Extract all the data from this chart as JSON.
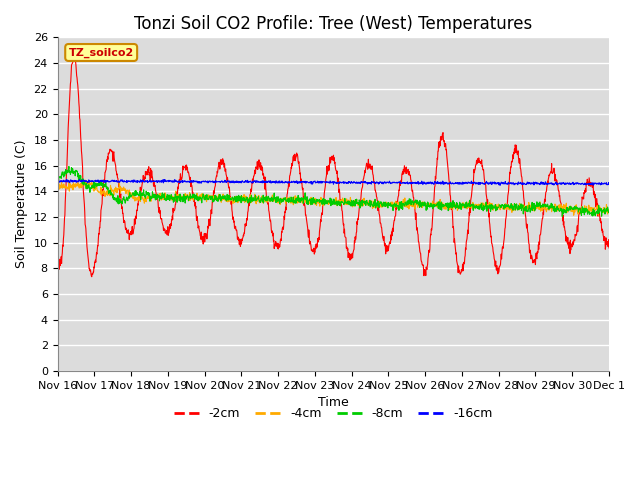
{
  "title": "Tonzi Soil CO2 Profile: Tree (West) Temperatures",
  "xlabel": "Time",
  "ylabel": "Soil Temperature (C)",
  "legend_label": "TZ_soilco2",
  "ylim": [
    0,
    26
  ],
  "yticks": [
    0,
    2,
    4,
    6,
    8,
    10,
    12,
    14,
    16,
    18,
    20,
    22,
    24,
    26
  ],
  "series_colors": [
    "#ff0000",
    "#ffaa00",
    "#00cc00",
    "#0000ff"
  ],
  "series_labels": [
    "-2cm",
    "-4cm",
    "-8cm",
    "-16cm"
  ],
  "plot_bg_color": "#dcdcdc",
  "title_fontsize": 12,
  "axis_fontsize": 9,
  "tick_fontsize": 8,
  "n_points": 1500
}
